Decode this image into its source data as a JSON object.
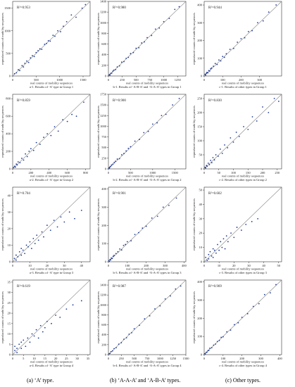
{
  "captions": [
    "(a) ‘A’ type.",
    "(b) ‘A-A-A’ and ‘A-B-A’ types.",
    "(c) Other types."
  ],
  "chart_data": [
    {
      "type": "scatter",
      "title": "a-1. Results of ‘A’ type in Group 1",
      "r2": "R²=0.953",
      "xlabel": "real counts of mobility sequences",
      "ylabel": "reproduced counts of mobility sequences",
      "xlim": [
        0,
        1650
      ],
      "ylim": [
        0,
        1650
      ],
      "xticks": [
        0,
        500,
        1000,
        1500
      ],
      "yticks": [
        0,
        500,
        1000,
        1500
      ],
      "point_color": "#1f3a93",
      "grid": false,
      "reference_line": "y=x",
      "x": [
        40,
        80,
        120,
        150,
        200,
        230,
        260,
        300,
        340,
        380,
        420,
        460,
        500,
        540,
        580,
        620,
        680,
        720,
        760,
        800,
        860,
        900,
        960,
        1020,
        1080,
        1150,
        1250,
        1350,
        1480,
        1550
      ],
      "y": [
        50,
        70,
        140,
        120,
        230,
        200,
        280,
        330,
        300,
        400,
        450,
        430,
        520,
        560,
        600,
        590,
        700,
        720,
        780,
        770,
        900,
        880,
        1000,
        980,
        1100,
        1200,
        1350,
        1300,
        1500,
        1580
      ]
    },
    {
      "type": "scatter",
      "title": "b-1. Results of ‘A-B-A’ and ‘A-A-A’ types in Group 1",
      "r2": "R²=0.980",
      "xlabel": "real counts of mobility sequences",
      "ylabel": "reproduced counts of mobility sequences",
      "xlim": [
        0,
        1400
      ],
      "ylim": [
        0,
        1400
      ],
      "xticks": [
        0,
        250,
        500,
        750,
        1000,
        1250
      ],
      "yticks": [
        0,
        200,
        400,
        600,
        800,
        1000,
        1200,
        1400
      ],
      "point_color": "#1f3a93",
      "grid": false,
      "reference_line": "y=x",
      "x": [
        10,
        20,
        30,
        40,
        60,
        80,
        100,
        130,
        160,
        200,
        240,
        280,
        320,
        360,
        400,
        450,
        500,
        550,
        600,
        650,
        700,
        780,
        850,
        920,
        1000,
        1100,
        1200,
        1280
      ],
      "y": [
        15,
        25,
        20,
        50,
        55,
        90,
        110,
        120,
        170,
        190,
        260,
        270,
        330,
        350,
        420,
        440,
        520,
        530,
        620,
        640,
        720,
        760,
        880,
        900,
        1020,
        1080,
        1250,
        1300
      ]
    },
    {
      "type": "scatter",
      "title": "c-1. Results of other types in Group 1",
      "r2": "R²=0.944",
      "xlabel": "real counts of mobility sequences",
      "ylabel": "reproduced counts of mobility sequences",
      "xlim": [
        0,
        420
      ],
      "ylim": [
        0,
        420
      ],
      "xticks": [
        0,
        100,
        200,
        300
      ],
      "yticks": [
        0,
        100,
        200,
        300,
        400
      ],
      "point_color": "#1f3a93",
      "grid": false,
      "reference_line": "y=x",
      "x": [
        5,
        8,
        12,
        15,
        20,
        25,
        30,
        35,
        40,
        50,
        60,
        70,
        80,
        90,
        100,
        110,
        120,
        140,
        160,
        180,
        200,
        220,
        240,
        260,
        290,
        320,
        350,
        390
      ],
      "y": [
        10,
        5,
        15,
        20,
        18,
        30,
        28,
        40,
        45,
        55,
        70,
        65,
        90,
        85,
        110,
        105,
        125,
        150,
        155,
        190,
        210,
        215,
        250,
        255,
        300,
        310,
        360,
        400
      ]
    },
    {
      "type": "scatter",
      "title": "a-2. Results of ‘A’ type in Group 2",
      "r2": "R²=0.859",
      "xlabel": "real counts of mobility sequences",
      "ylabel": "reproduced counts of mobility sequences",
      "xlim": [
        0,
        850
      ],
      "ylim": [
        0,
        850
      ],
      "xticks": [
        0,
        200,
        400,
        600,
        800
      ],
      "yticks": [
        0,
        200,
        400,
        600,
        800
      ],
      "point_color": "#1f3a93",
      "grid": false,
      "reference_line": "y=x",
      "x": [
        10,
        20,
        30,
        40,
        50,
        60,
        80,
        100,
        120,
        140,
        160,
        180,
        200,
        230,
        260,
        300,
        340,
        380,
        420,
        460,
        500,
        550,
        600,
        650,
        700,
        780
      ],
      "y": [
        15,
        30,
        20,
        55,
        45,
        80,
        70,
        120,
        100,
        170,
        140,
        200,
        230,
        210,
        300,
        280,
        360,
        400,
        380,
        480,
        430,
        560,
        540,
        620,
        600,
        760
      ]
    },
    {
      "type": "scatter",
      "title": "b-2. Results of ‘A-B-A’ and ‘A-A-A’ types in Group 2",
      "r2": "R²=0.900",
      "xlabel": "real counts of mobility sequences",
      "ylabel": "reproduced counts of mobility sequences",
      "xlim": [
        0,
        1750
      ],
      "ylim": [
        0,
        1750
      ],
      "xticks": [
        0,
        500,
        1000,
        1500
      ],
      "yticks": [
        0,
        250,
        500,
        750,
        1000,
        1250,
        1500,
        1750
      ],
      "point_color": "#1f3a93",
      "grid": false,
      "reference_line": "y=x",
      "x": [
        10,
        20,
        30,
        50,
        70,
        100,
        130,
        160,
        200,
        250,
        300,
        350,
        400,
        450,
        500,
        600,
        700,
        800,
        900,
        1000,
        1100,
        1200,
        1300,
        1450,
        1600
      ],
      "y": [
        20,
        15,
        40,
        60,
        90,
        110,
        150,
        180,
        230,
        240,
        330,
        360,
        420,
        480,
        520,
        650,
        690,
        850,
        880,
        1050,
        1080,
        1250,
        1280,
        1500,
        1650
      ]
    },
    {
      "type": "scatter",
      "title": "c-2. Results of other types in Group 2",
      "r2": "R²=0.830",
      "xlabel": "real counts of mobility sequences",
      "ylabel": "reproduced counts of mobility sequences",
      "xlim": [
        0,
        265
      ],
      "ylim": [
        0,
        265
      ],
      "xticks": [
        0,
        50,
        100,
        150,
        200,
        250
      ],
      "yticks": [
        0,
        50,
        100,
        150,
        200,
        250
      ],
      "point_color": "#1f3a93",
      "grid": false,
      "reference_line": "y=x",
      "x": [
        3,
        5,
        8,
        10,
        14,
        18,
        22,
        26,
        30,
        35,
        40,
        48,
        55,
        62,
        70,
        80,
        90,
        100,
        110,
        120,
        135,
        150,
        165,
        180,
        200,
        220,
        240,
        255
      ],
      "y": [
        6,
        3,
        12,
        9,
        20,
        15,
        30,
        22,
        40,
        32,
        50,
        45,
        70,
        55,
        85,
        75,
        110,
        95,
        130,
        115,
        150,
        140,
        185,
        170,
        220,
        200,
        250,
        240
      ]
    },
    {
      "type": "scatter",
      "title": "a-3. Results of ‘A’ type in Group 3",
      "r2": "R²=0.704",
      "xlabel": "real counts of mobility sequences",
      "ylabel": "reproduced counts of mobility sequences",
      "xlim": [
        0,
        45
      ],
      "ylim": [
        0,
        45
      ],
      "xticks": [
        0,
        10,
        20,
        30,
        40
      ],
      "yticks": [
        0,
        10,
        20,
        30,
        40
      ],
      "point_color": "#1f3a93",
      "grid": false,
      "reference_line": "y=x",
      "x": [
        1,
        2,
        2,
        3,
        4,
        5,
        5,
        6,
        7,
        8,
        9,
        10,
        11,
        12,
        13,
        14,
        15,
        17,
        18,
        20,
        22,
        24,
        26,
        28,
        30,
        33,
        36,
        40
      ],
      "y": [
        2,
        1,
        4,
        3,
        6,
        4,
        8,
        7,
        5,
        10,
        9,
        12,
        8,
        14,
        11,
        16,
        13,
        18,
        15,
        22,
        19,
        25,
        21,
        27,
        24,
        30,
        26,
        31
      ]
    },
    {
      "type": "scatter",
      "title": "b-3. Results of ‘A-B-A’ and ‘A-A-A’ types in Group 3",
      "r2": "R²=0.901",
      "xlabel": "real counts of mobility sequences",
      "ylabel": "reproduced counts of mobility sequences",
      "xlim": [
        0,
        410
      ],
      "ylim": [
        0,
        410
      ],
      "xticks": [
        0,
        100,
        200,
        300,
        400
      ],
      "yticks": [
        0,
        100,
        200,
        300,
        400
      ],
      "point_color": "#1f3a93",
      "grid": false,
      "reference_line": "y=x",
      "x": [
        2,
        5,
        8,
        12,
        15,
        20,
        25,
        30,
        40,
        50,
        60,
        70,
        80,
        90,
        100,
        120,
        140,
        160,
        180,
        200,
        230,
        260,
        290,
        320,
        360
      ],
      "y": [
        5,
        3,
        12,
        10,
        20,
        18,
        30,
        35,
        45,
        55,
        70,
        65,
        90,
        95,
        110,
        115,
        150,
        160,
        185,
        195,
        240,
        250,
        300,
        310,
        350
      ]
    },
    {
      "type": "scatter",
      "title": "c-3. Results of other types in Group 3",
      "r2": "R²=0.602",
      "xlabel": "real counts of mobility sequences",
      "ylabel": "reproduced counts of mobility sequences",
      "xlim": [
        0,
        52
      ],
      "ylim": [
        0,
        52
      ],
      "xticks": [
        0,
        10,
        20,
        30,
        40,
        50
      ],
      "yticks": [
        0,
        10,
        20,
        30,
        40,
        50
      ],
      "point_color": "#1f3a93",
      "grid": false,
      "reference_line": "y=x",
      "x": [
        1,
        2,
        3,
        3,
        4,
        5,
        6,
        6,
        7,
        8,
        9,
        10,
        11,
        12,
        13,
        14,
        15,
        16,
        18,
        20,
        22,
        25,
        28,
        32,
        36
      ],
      "y": [
        3,
        1,
        5,
        2,
        7,
        4,
        9,
        3,
        8,
        6,
        12,
        8,
        14,
        10,
        16,
        9,
        18,
        14,
        20,
        17,
        24,
        22,
        26,
        28,
        30
      ]
    },
    {
      "type": "scatter",
      "title": "a-4. Results of ‘A’ type in Group 4",
      "r2": "R²=0.619",
      "xlabel": "real counts of mobility sequences",
      "ylabel": "reproduced counts of mobility sequences",
      "xlim": [
        0,
        36
      ],
      "ylim": [
        0,
        36
      ],
      "xticks": [
        0,
        5,
        10,
        15,
        20,
        25,
        30,
        35
      ],
      "yticks": [
        0,
        5,
        10,
        15,
        20,
        25,
        30,
        35
      ],
      "point_color": "#1f3a93",
      "grid": false,
      "reference_line": "y=x",
      "x": [
        1,
        1,
        2,
        2,
        3,
        4,
        4,
        5,
        6,
        7,
        8,
        9,
        10,
        11,
        12,
        13,
        14,
        15,
        16,
        18,
        20,
        22,
        25,
        28,
        32
      ],
      "y": [
        2,
        4,
        1,
        3,
        5,
        3,
        6,
        7,
        4,
        8,
        6,
        10,
        9,
        12,
        8,
        14,
        11,
        13,
        16,
        15,
        19,
        18,
        22,
        24,
        26
      ]
    },
    {
      "type": "scatter",
      "title": "b-4. Results of ‘A-B-A’ and ‘A-A-A’ types in Group 4",
      "r2": "R²=0.987",
      "xlabel": "real counts of mobility sequences",
      "ylabel": "reproduced counts of mobility sequences",
      "xlim": [
        0,
        1500
      ],
      "ylim": [
        0,
        1500
      ],
      "xticks": [
        0,
        250,
        500,
        750,
        1000,
        1250,
        1500
      ],
      "yticks": [
        0,
        200,
        400,
        600,
        800,
        1000,
        1200,
        1400
      ],
      "point_color": "#1f3a93",
      "grid": false,
      "reference_line": "y=x",
      "x": [
        10,
        30,
        50,
        80,
        110,
        150,
        200,
        250,
        300,
        350,
        400,
        450,
        500,
        600,
        700,
        800,
        900,
        1000,
        1100,
        1200,
        1300,
        1400
      ],
      "y": [
        15,
        25,
        60,
        75,
        120,
        140,
        210,
        240,
        310,
        340,
        410,
        440,
        520,
        590,
        720,
        780,
        920,
        980,
        1120,
        1180,
        1320,
        1380
      ]
    },
    {
      "type": "scatter",
      "title": "c-4. Results of other types in Group 4",
      "r2": "R²=0.969",
      "xlabel": "real counts of mobility sequences",
      "ylabel": "reproduced counts of mobility sequences",
      "xlim": [
        0,
        410
      ],
      "ylim": [
        0,
        410
      ],
      "xticks": [
        0,
        100,
        200,
        300,
        400
      ],
      "yticks": [
        0,
        100,
        200,
        300,
        400
      ],
      "point_color": "#1f3a93",
      "grid": false,
      "reference_line": "y=x",
      "x": [
        3,
        6,
        10,
        15,
        20,
        25,
        30,
        40,
        50,
        60,
        70,
        80,
        90,
        100,
        120,
        140,
        160,
        180,
        200,
        230,
        260,
        290,
        320,
        350,
        380
      ],
      "y": [
        5,
        4,
        12,
        14,
        22,
        24,
        35,
        38,
        52,
        58,
        72,
        78,
        95,
        98,
        125,
        135,
        165,
        175,
        205,
        225,
        265,
        280,
        330,
        340,
        385
      ]
    }
  ]
}
